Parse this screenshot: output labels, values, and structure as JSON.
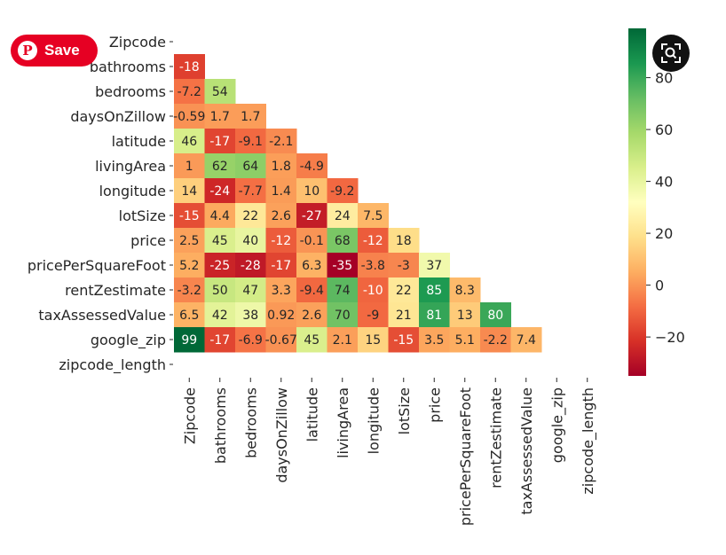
{
  "overlay": {
    "save_label": "Save"
  },
  "chart_data": {
    "type": "heatmap",
    "title": "",
    "labels": [
      "Zipcode",
      "bathrooms",
      "bedrooms",
      "daysOnZillow",
      "latitude",
      "livingArea",
      "longitude",
      "lotSize",
      "price",
      "pricePerSquareFoot",
      "rentZestimate",
      "taxAssessedValue",
      "google_zip",
      "zipcode_length"
    ],
    "mask": "upper triangle incl. diagonal",
    "rows": [
      [],
      [
        "-18"
      ],
      [
        "-7.2",
        "54"
      ],
      [
        "-0.59",
        "1.7",
        "1.7"
      ],
      [
        "46",
        "-17",
        "-9.1",
        "-2.1"
      ],
      [
        "1",
        "62",
        "64",
        "1.8",
        "-4.9"
      ],
      [
        "14",
        "-24",
        "-7.7",
        "1.4",
        "10",
        "-9.2"
      ],
      [
        "-15",
        "4.4",
        "22",
        "2.6",
        "-27",
        "24",
        "7.5"
      ],
      [
        "2.5",
        "45",
        "40",
        "-12",
        "-0.1",
        "68",
        "-12",
        "18"
      ],
      [
        "5.2",
        "-25",
        "-28",
        "-17",
        "6.3",
        "-35",
        "-3.8",
        "-3",
        "37"
      ],
      [
        "-3.2",
        "50",
        "47",
        "3.3",
        "-9.4",
        "74",
        "-10",
        "22",
        "85",
        "8.3"
      ],
      [
        "6.5",
        "42",
        "38",
        "0.92",
        "2.6",
        "70",
        "-9",
        "21",
        "81",
        "13",
        "80"
      ],
      [
        "99",
        "-17",
        "-6.9",
        "-0.67",
        "45",
        "2.1",
        "15",
        "-15",
        "3.5",
        "5.1",
        "-2.2",
        "7.4"
      ],
      []
    ],
    "colorbar": {
      "ticks": [
        "80",
        "60",
        "40",
        "20",
        "0",
        "−20"
      ],
      "tick_values": [
        80,
        60,
        40,
        20,
        0,
        -20
      ],
      "vmin": -35,
      "vmax": 99,
      "colormap": "RdYlGn"
    }
  }
}
